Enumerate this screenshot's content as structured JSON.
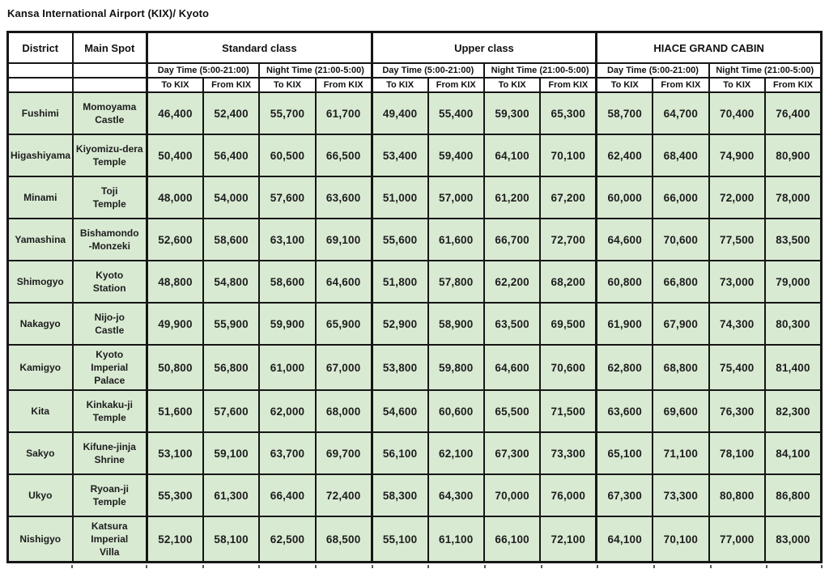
{
  "title": "Kansa International Airport (KIX)/ Kyoto",
  "table": {
    "corner_headers": [
      "District",
      "Main Spot"
    ],
    "class_groups": [
      "Standard class",
      "Upper class",
      "HIACE GRAND CABIN"
    ],
    "time_headers": [
      "Day Time (5:00-21:00)",
      "Night Time (21:00-5:00)"
    ],
    "direction_headers": [
      "To KIX",
      "From KIX"
    ],
    "rows": [
      {
        "district": "Fushimi",
        "spot": "Momoyama\nCastle",
        "fares": [
          "46,400",
          "52,400",
          "55,700",
          "61,700",
          "49,400",
          "55,400",
          "59,300",
          "65,300",
          "58,700",
          "64,700",
          "70,400",
          "76,400"
        ]
      },
      {
        "district": "Higashiyama",
        "spot": "Kiyomizu-dera\nTemple",
        "fares": [
          "50,400",
          "56,400",
          "60,500",
          "66,500",
          "53,400",
          "59,400",
          "64,100",
          "70,100",
          "62,400",
          "68,400",
          "74,900",
          "80,900"
        ]
      },
      {
        "district": "Minami",
        "spot": "Toji\nTemple",
        "fares": [
          "48,000",
          "54,000",
          "57,600",
          "63,600",
          "51,000",
          "57,000",
          "61,200",
          "67,200",
          "60,000",
          "66,000",
          "72,000",
          "78,000"
        ]
      },
      {
        "district": "Yamashina",
        "spot": "Bishamondo\n-Monzeki",
        "fares": [
          "52,600",
          "58,600",
          "63,100",
          "69,100",
          "55,600",
          "61,600",
          "66,700",
          "72,700",
          "64,600",
          "70,600",
          "77,500",
          "83,500"
        ]
      },
      {
        "district": "Shimogyo",
        "spot": "Kyoto\nStation",
        "fares": [
          "48,800",
          "54,800",
          "58,600",
          "64,600",
          "51,800",
          "57,800",
          "62,200",
          "68,200",
          "60,800",
          "66,800",
          "73,000",
          "79,000"
        ]
      },
      {
        "district": "Nakagyo",
        "spot": "Nijo-jo\nCastle",
        "fares": [
          "49,900",
          "55,900",
          "59,900",
          "65,900",
          "52,900",
          "58,900",
          "63,500",
          "69,500",
          "61,900",
          "67,900",
          "74,300",
          "80,300"
        ]
      },
      {
        "district": "Kamigyo",
        "spot": "Kyoto\nImperial\nPalace",
        "fares": [
          "50,800",
          "56,800",
          "61,000",
          "67,000",
          "53,800",
          "59,800",
          "64,600",
          "70,600",
          "62,800",
          "68,800",
          "75,400",
          "81,400"
        ]
      },
      {
        "district": "Kita",
        "spot": "Kinkaku-ji\nTemple",
        "fares": [
          "51,600",
          "57,600",
          "62,000",
          "68,000",
          "54,600",
          "60,600",
          "65,500",
          "71,500",
          "63,600",
          "69,600",
          "76,300",
          "82,300"
        ]
      },
      {
        "district": "Sakyo",
        "spot": "Kifune-jinja\nShrine",
        "fares": [
          "53,100",
          "59,100",
          "63,700",
          "69,700",
          "56,100",
          "62,100",
          "67,300",
          "73,300",
          "65,100",
          "71,100",
          "78,100",
          "84,100"
        ]
      },
      {
        "district": "Ukyo",
        "spot": "Ryoan-ji\nTemple",
        "fares": [
          "55,300",
          "61,300",
          "66,400",
          "72,400",
          "58,300",
          "64,300",
          "70,000",
          "76,000",
          "67,300",
          "73,300",
          "80,800",
          "86,800"
        ]
      },
      {
        "district": "Nishigyo",
        "spot": "Katsura\nImperial\nVilla",
        "fares": [
          "52,100",
          "58,100",
          "62,500",
          "68,500",
          "55,100",
          "61,100",
          "66,100",
          "72,100",
          "64,100",
          "70,100",
          "77,000",
          "83,000"
        ]
      }
    ]
  },
  "colors": {
    "cell_bg": "#d9ead3",
    "border": "#161616",
    "text": "#1d1d1d"
  }
}
